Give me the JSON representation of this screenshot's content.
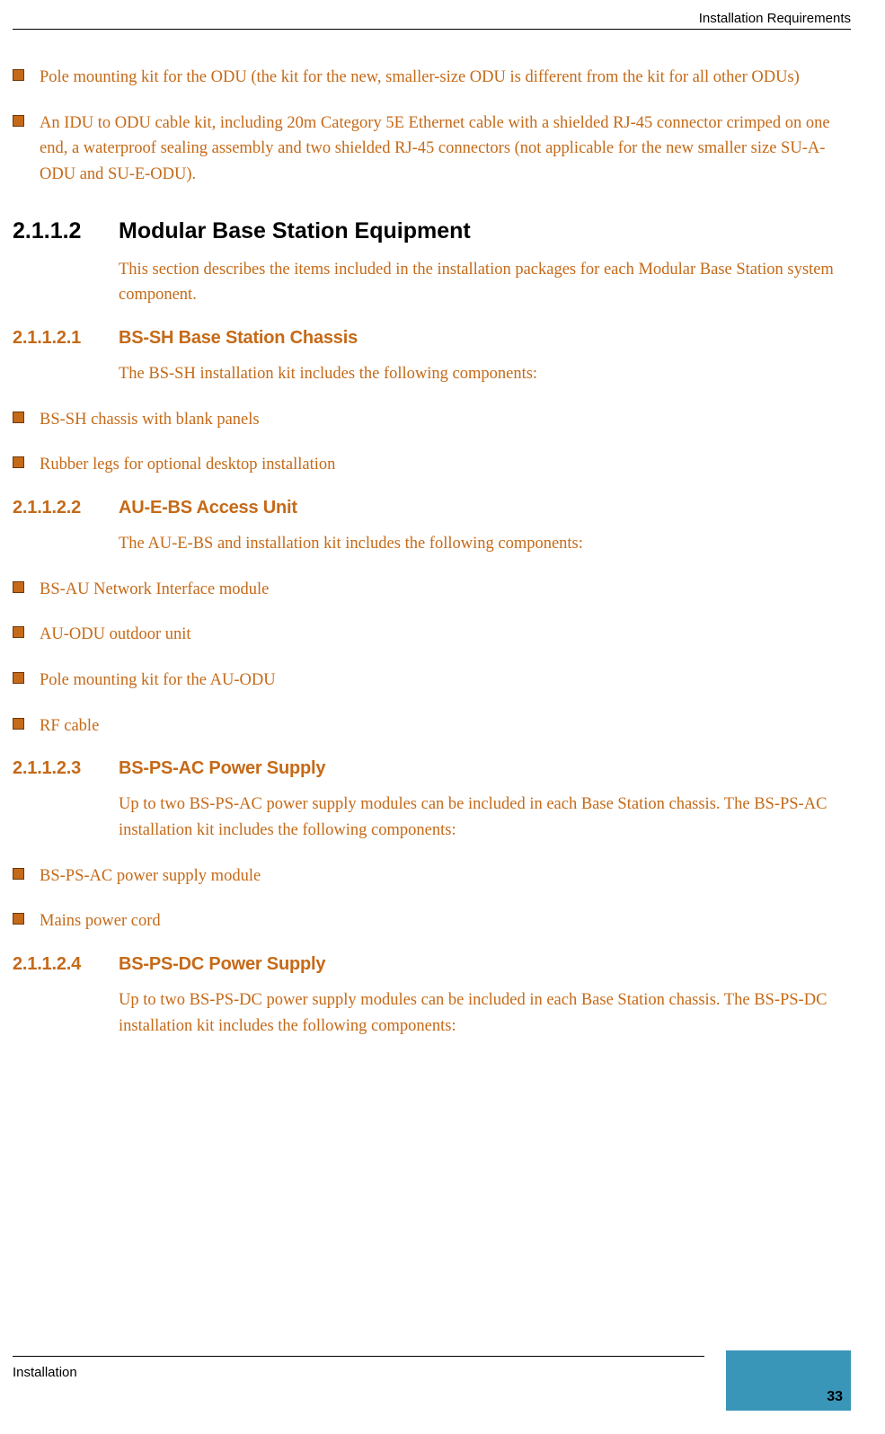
{
  "header": {
    "right_text": "Installation Requirements"
  },
  "footer": {
    "left_text": "Installation",
    "page_number": "33"
  },
  "colors": {
    "accent": "#c56a18",
    "bullet_border": "#6f380a",
    "tab_bg": "#3a96b9",
    "rule": "#000000",
    "body_text": "#c56a18"
  },
  "typography": {
    "body_font": "Georgia serif",
    "heading_font": "Arial sans-serif",
    "h3_font": "Verdana sans-serif",
    "body_fontsize_pt": 14,
    "h2_fontsize_pt": 19,
    "h3_fontsize_pt": 15
  },
  "intro_bullets": [
    "Pole mounting kit for the ODU (the kit for the new, smaller-size ODU is different from the kit for all other ODUs)",
    "An IDU to ODU cable kit, including 20m Category 5E Ethernet cable with a shielded RJ-45 connector crimped on one end, a waterproof sealing assembly and two shielded RJ-45 connectors (not applicable for the new smaller size SU-A-ODU and SU-E-ODU)."
  ],
  "section": {
    "number": "2.1.1.2",
    "title": "Modular Base Station Equipment",
    "intro": "This section describes the items included in the installation packages for each Modular Base Station system component."
  },
  "subsections": [
    {
      "number": "2.1.1.2.1",
      "title": "BS-SH Base Station Chassis",
      "intro": "The BS-SH installation kit includes the following components:",
      "bullets": [
        "BS-SH chassis with blank panels",
        "Rubber legs for optional desktop installation"
      ]
    },
    {
      "number": "2.1.1.2.2",
      "title": "AU-E-BS Access Unit",
      "intro": "The AU-E-BS and installation kit includes the following components:",
      "bullets": [
        "BS-AU Network Interface module",
        "AU-ODU outdoor unit",
        "Pole mounting kit for the AU-ODU",
        "RF cable"
      ]
    },
    {
      "number": "2.1.1.2.3",
      "title": "BS-PS-AC Power Supply",
      "intro": "Up to two BS-PS-AC power supply modules can be included in each Base Station chassis. The BS-PS-AC installation kit includes the following components:",
      "bullets": [
        "BS-PS-AC power supply module",
        "Mains power cord"
      ]
    },
    {
      "number": "2.1.1.2.4",
      "title": "BS-PS-DC Power Supply",
      "intro": "Up to two BS-PS-DC power supply modules can be included in each Base Station chassis. The BS-PS-DC installation kit includes the following components:",
      "bullets": []
    }
  ]
}
